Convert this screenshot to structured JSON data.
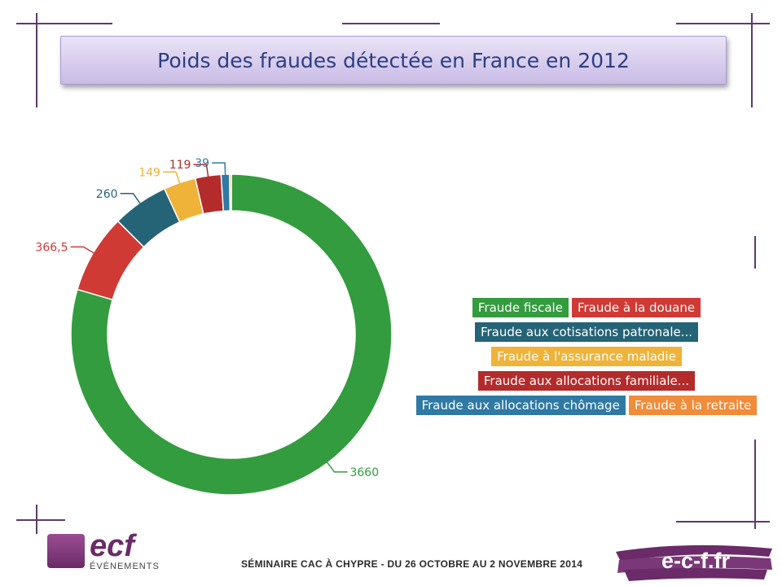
{
  "title": "Poids des fraudes détectée en France en 2012",
  "chart_data": {
    "type": "pie",
    "donut": true,
    "title": "Poids des fraudes détectée en France en 2012",
    "slices": [
      {
        "name": "Fraude fiscale",
        "value": 3660,
        "label": "3660",
        "color": "#339c3e"
      },
      {
        "name": "Fraude à la douane",
        "value": 366.5,
        "label": "366,5",
        "color": "#d03a35"
      },
      {
        "name": "Fraude aux cotisations patronale...",
        "value": 260,
        "label": "260",
        "color": "#256477"
      },
      {
        "name": "Fraude à l'assurance maladie",
        "value": 149,
        "label": "149",
        "color": "#efb339"
      },
      {
        "name": "Fraude aux allocations familiale...",
        "value": 119,
        "label": "119",
        "color": "#b32b2b"
      },
      {
        "name": "Fraude aux allocations chômage",
        "value": 39,
        "label": "39",
        "color": "#2f79a4"
      },
      {
        "name": "Fraude à la retraite",
        "value": 8,
        "label": "",
        "color": "#f08c3a"
      }
    ],
    "legend_placement": "right"
  },
  "legend_rows": [
    [
      0,
      1
    ],
    [
      2
    ],
    [
      3
    ],
    [
      4
    ],
    [
      5,
      6
    ]
  ],
  "footer": {
    "logo_text": "ecf",
    "logo_subtitle": "ÉVÉNEMENTS",
    "seminar": "SÉMINAIRE CAC À CHYPRE - DU 26 OCTOBRE AU 2 NOVEMBRE 2014",
    "website": "e-c-f.fr"
  }
}
